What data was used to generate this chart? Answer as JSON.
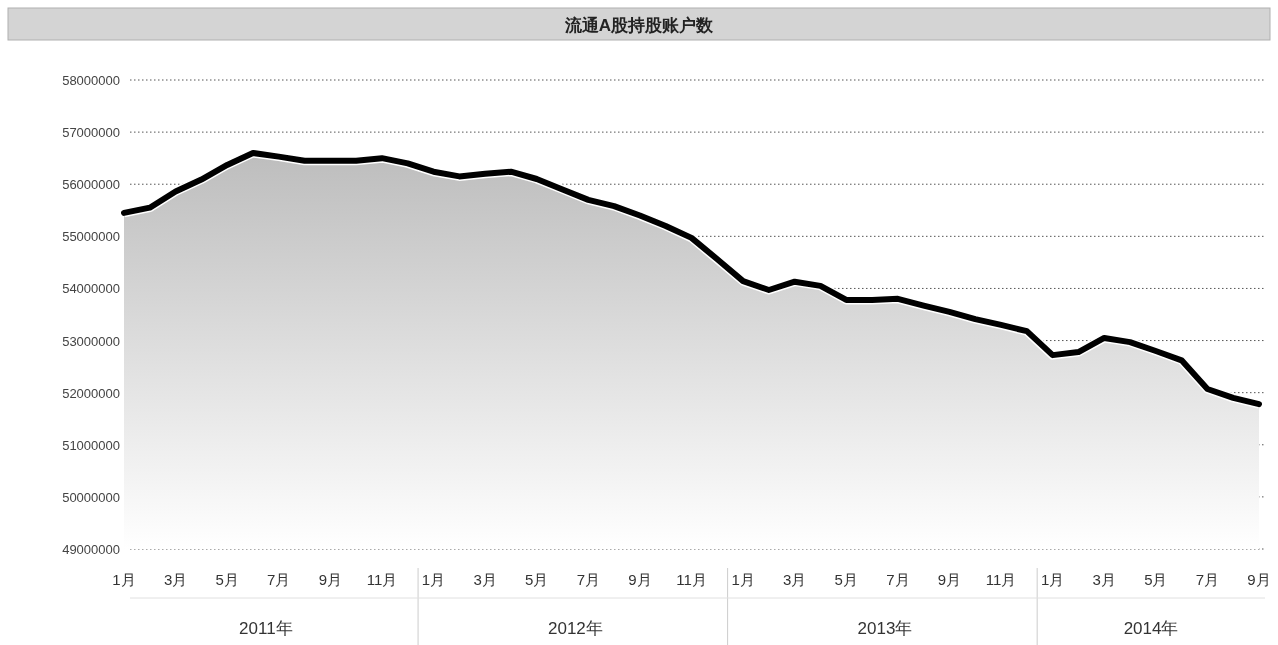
{
  "chart_data": {
    "type": "area",
    "title": "流通A股持股账户数",
    "categories": [
      "1月",
      null,
      "3月",
      null,
      "5月",
      null,
      "7月",
      null,
      "9月",
      null,
      "11月",
      null,
      "1月",
      null,
      "3月",
      null,
      "5月",
      null,
      "7月",
      null,
      "9月",
      null,
      "11月",
      null,
      "1月",
      null,
      "3月",
      null,
      "5月",
      null,
      "7月",
      null,
      "9月",
      null,
      "11月",
      null,
      "1月",
      null,
      "3月",
      null,
      "5月",
      null,
      "7月",
      null,
      "9月"
    ],
    "series": [
      {
        "color": "#000000",
        "values": [
          55450000,
          55550000,
          55860000,
          56090000,
          56370000,
          56600000,
          56530000,
          56450000,
          56450000,
          56450000,
          56500000,
          56400000,
          56240000,
          56150000,
          56200000,
          56240000,
          56100000,
          55900000,
          55700000,
          55580000,
          55400000,
          55200000,
          54970000,
          54560000,
          54140000,
          53970000,
          54130000,
          54050000,
          53780000,
          53780000,
          53800000,
          53670000,
          53550000,
          53410000,
          53300000,
          53180000,
          52720000,
          52780000,
          53050000,
          52970000,
          52800000,
          52620000,
          52070000,
          51900000,
          51780000
        ]
      }
    ],
    "ylim": [
      49000000,
      58000000
    ],
    "yticks": [
      49000000,
      50000000,
      51000000,
      52000000,
      53000000,
      54000000,
      55000000,
      56000000,
      57000000,
      58000000
    ],
    "grid": "y",
    "annotations": [
      "2011年",
      "2012年",
      "2013年",
      "2014年"
    ]
  }
}
